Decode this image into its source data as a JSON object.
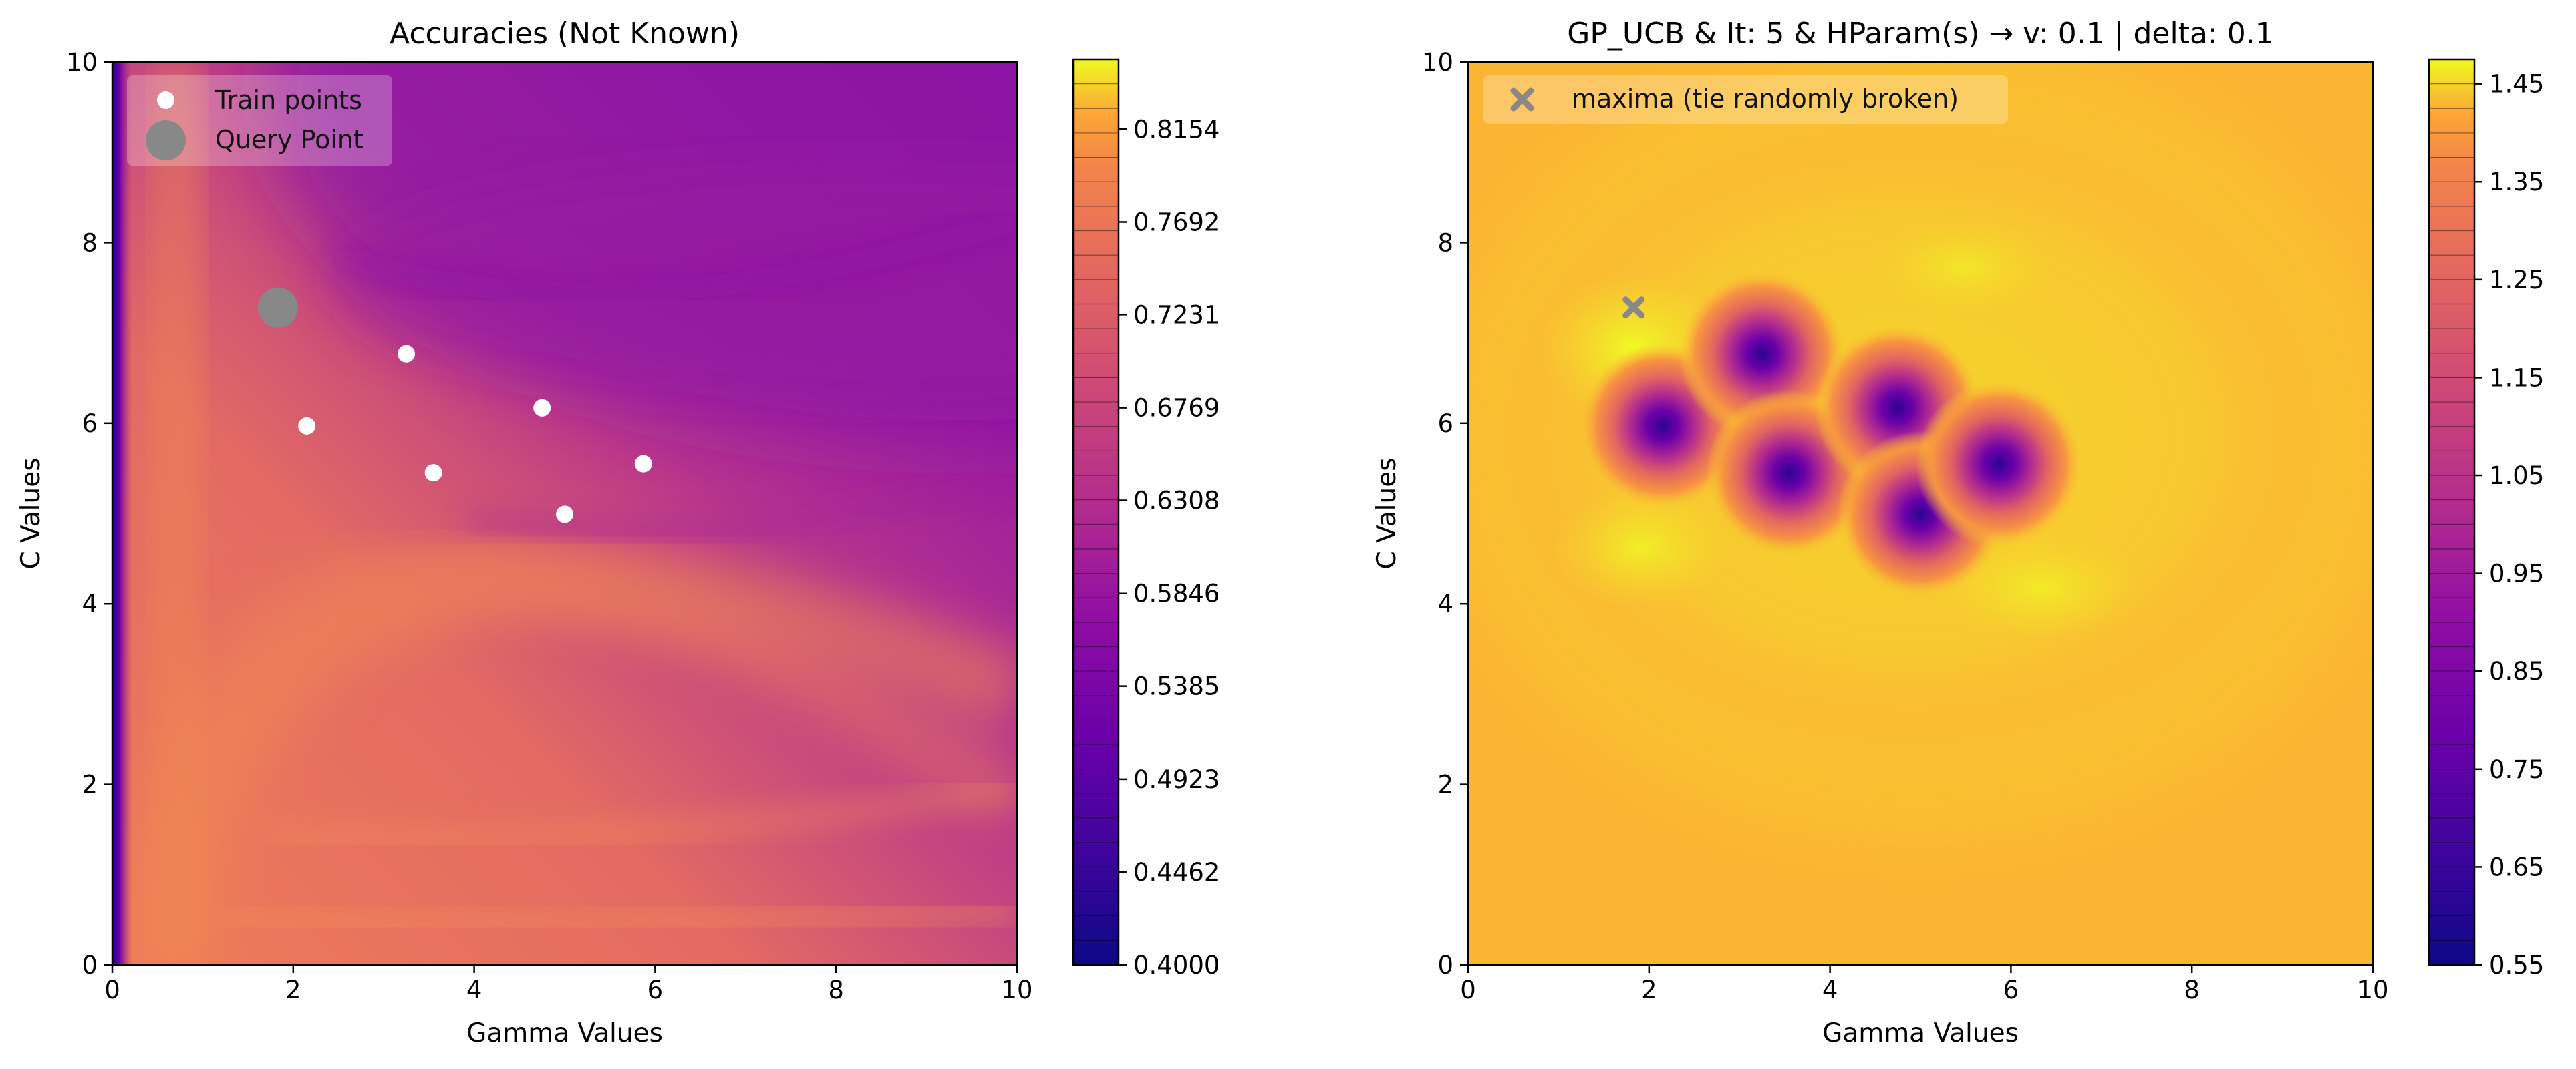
{
  "chart_data": [
    {
      "type": "heatmap",
      "title": "Accuracies (Not Known)",
      "xlabel": "Gamma Values",
      "ylabel": "C Values",
      "xlim": [
        0,
        10
      ],
      "ylim": [
        0,
        10
      ],
      "xticks": [
        "0",
        "2",
        "4",
        "6",
        "8",
        "10"
      ],
      "yticks": [
        "0",
        "2",
        "4",
        "6",
        "8",
        "10"
      ],
      "colormap": "plasma",
      "colorbar": {
        "range": [
          0.4,
          0.85
        ],
        "ticks": [
          "0.4000",
          "0.4462",
          "0.4923",
          "0.5385",
          "0.5846",
          "0.6308",
          "0.6769",
          "0.7231",
          "0.7692",
          "0.8154"
        ]
      },
      "legend": {
        "placement": "top-left",
        "entries": [
          "Train points",
          "Query Point"
        ]
      },
      "series": [
        {
          "name": "Train points",
          "points": [
            [
              2.15,
              5.97
            ],
            [
              3.25,
              6.77
            ],
            [
              3.55,
              5.45
            ],
            [
              4.75,
              6.17
            ],
            [
              5.0,
              4.99
            ],
            [
              5.87,
              5.55
            ]
          ]
        },
        {
          "name": "Query Point",
          "points": [
            [
              1.83,
              7.28
            ]
          ]
        }
      ],
      "colors": {
        "train": "#ffffff",
        "query": "#888888"
      }
    },
    {
      "type": "heatmap",
      "title": "GP_UCB & It: 5 & HParam(s) → v: 0.1 | delta: 0.1",
      "xlabel": "Gamma Values",
      "ylabel": "C Values",
      "xlim": [
        0,
        10
      ],
      "ylim": [
        0,
        10
      ],
      "xticks": [
        "0",
        "2",
        "4",
        "6",
        "8",
        "10"
      ],
      "yticks": [
        "0",
        "2",
        "4",
        "6",
        "8",
        "10"
      ],
      "colormap": "plasma",
      "colorbar": {
        "range": [
          0.55,
          1.475
        ],
        "ticks": [
          "0.55",
          "0.65",
          "0.75",
          "0.85",
          "0.95",
          "1.05",
          "1.15",
          "1.25",
          "1.35",
          "1.45"
        ]
      },
      "legend": {
        "placement": "top-left",
        "entries": [
          "maxima (tie randomly broken)"
        ]
      },
      "series": [
        {
          "name": "maxima (tie randomly broken)",
          "points": [
            [
              1.83,
              7.28
            ]
          ]
        }
      ],
      "colors": {
        "maxima": "#888888"
      }
    }
  ]
}
